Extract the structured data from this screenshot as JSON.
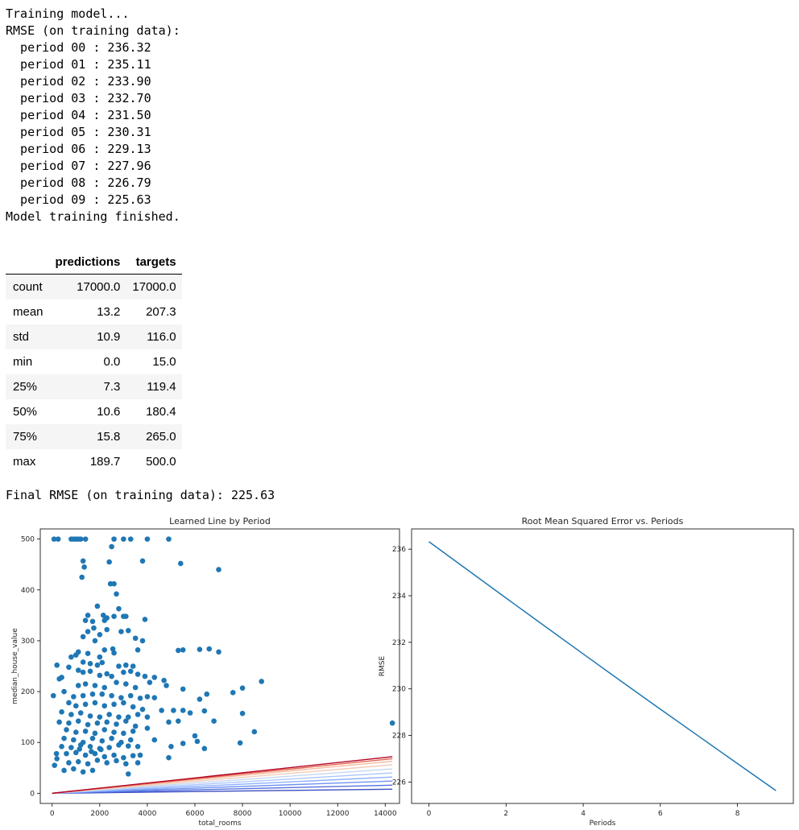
{
  "log": {
    "lines": [
      "Training model...",
      "RMSE (on training data):",
      "  period 00 : 236.32",
      "  period 01 : 235.11",
      "  period 02 : 233.90",
      "  period 03 : 232.70",
      "  period 04 : 231.50",
      "  period 05 : 230.31",
      "  period 06 : 229.13",
      "  period 07 : 227.96",
      "  period 08 : 226.79",
      "  period 09 : 225.63",
      "Model training finished."
    ]
  },
  "table": {
    "columns": [
      "",
      "predictions",
      "targets"
    ],
    "rows": [
      [
        "count",
        "17000.0",
        "17000.0"
      ],
      [
        "mean",
        "13.2",
        "207.3"
      ],
      [
        "std",
        "10.9",
        "116.0"
      ],
      [
        "min",
        "0.0",
        "15.0"
      ],
      [
        "25%",
        "7.3",
        "119.4"
      ],
      [
        "50%",
        "10.6",
        "180.4"
      ],
      [
        "75%",
        "15.8",
        "265.0"
      ],
      [
        "max",
        "189.7",
        "500.0"
      ]
    ]
  },
  "final_rmse": "Final RMSE (on training data): 225.63",
  "chart_data": [
    {
      "type": "scatter",
      "title": "Learned Line by Period",
      "xlabel": "total_rooms",
      "ylabel": "median_house_value",
      "xlim": [
        -500,
        14600
      ],
      "ylim": [
        -20,
        520
      ],
      "xticks": [
        0,
        2000,
        4000,
        6000,
        8000,
        10000,
        12000,
        14000
      ],
      "yticks": [
        0,
        100,
        200,
        300,
        400,
        500
      ],
      "point_color": "#1f77b4",
      "points": [
        [
          80,
          500
        ],
        [
          250,
          500
        ],
        [
          800,
          500
        ],
        [
          900,
          500
        ],
        [
          1000,
          500
        ],
        [
          1100,
          500
        ],
        [
          1200,
          500
        ],
        [
          1400,
          500
        ],
        [
          2600,
          500
        ],
        [
          3000,
          500
        ],
        [
          3300,
          500
        ],
        [
          4000,
          500
        ],
        [
          4900,
          500
        ],
        [
          1300,
          457
        ],
        [
          1350,
          445
        ],
        [
          1250,
          425
        ],
        [
          2400,
          455
        ],
        [
          2500,
          485
        ],
        [
          3800,
          457
        ],
        [
          5400,
          452
        ],
        [
          7000,
          440
        ],
        [
          2450,
          412
        ],
        [
          2600,
          412
        ],
        [
          2700,
          392
        ],
        [
          1900,
          368
        ],
        [
          2150,
          350
        ],
        [
          1500,
          350
        ],
        [
          1400,
          340
        ],
        [
          2200,
          340
        ],
        [
          1700,
          338
        ],
        [
          1750,
          325
        ],
        [
          2300,
          345
        ],
        [
          3000,
          348
        ],
        [
          3100,
          348
        ],
        [
          3900,
          342
        ],
        [
          2800,
          363
        ],
        [
          2600,
          348
        ],
        [
          1500,
          318
        ],
        [
          1300,
          308
        ],
        [
          2000,
          312
        ],
        [
          2300,
          322
        ],
        [
          2900,
          318
        ],
        [
          3200,
          320
        ],
        [
          3500,
          305
        ],
        [
          3800,
          300
        ],
        [
          1800,
          300
        ],
        [
          1000,
          272
        ],
        [
          1100,
          278
        ],
        [
          800,
          268
        ],
        [
          1500,
          275
        ],
        [
          2000,
          268
        ],
        [
          2200,
          282
        ],
        [
          2550,
          284
        ],
        [
          2600,
          276
        ],
        [
          3600,
          282
        ],
        [
          5300,
          281
        ],
        [
          5500,
          282
        ],
        [
          6200,
          283
        ],
        [
          6600,
          284
        ],
        [
          7000,
          278
        ],
        [
          1300,
          258
        ],
        [
          1600,
          255
        ],
        [
          1900,
          252
        ],
        [
          2100,
          257
        ],
        [
          2800,
          250
        ],
        [
          3100,
          252
        ],
        [
          3400,
          250
        ],
        [
          200,
          252
        ],
        [
          400,
          228
        ],
        [
          300,
          225
        ],
        [
          700,
          248
        ],
        [
          1100,
          242
        ],
        [
          1300,
          238
        ],
        [
          1600,
          240
        ],
        [
          2000,
          232
        ],
        [
          2300,
          235
        ],
        [
          2500,
          230
        ],
        [
          3000,
          238
        ],
        [
          3300,
          240
        ],
        [
          3600,
          234
        ],
        [
          3900,
          230
        ],
        [
          4300,
          228
        ],
        [
          1100,
          212
        ],
        [
          1400,
          215
        ],
        [
          1800,
          212
        ],
        [
          2200,
          208
        ],
        [
          2700,
          218
        ],
        [
          3100,
          215
        ],
        [
          3500,
          208
        ],
        [
          4100,
          218
        ],
        [
          4700,
          222
        ],
        [
          4800,
          212
        ],
        [
          8800,
          220
        ],
        [
          8000,
          207
        ],
        [
          7600,
          198
        ],
        [
          6500,
          195
        ],
        [
          5500,
          205
        ],
        [
          50,
          192
        ],
        [
          500,
          200
        ],
        [
          900,
          190
        ],
        [
          1300,
          192
        ],
        [
          1700,
          195
        ],
        [
          2100,
          195
        ],
        [
          2500,
          192
        ],
        [
          2900,
          188
        ],
        [
          3300,
          192
        ],
        [
          3700,
          187
        ],
        [
          4000,
          190
        ],
        [
          4300,
          188
        ],
        [
          700,
          178
        ],
        [
          1000,
          172
        ],
        [
          1400,
          175
        ],
        [
          1800,
          178
        ],
        [
          2200,
          172
        ],
        [
          2600,
          175
        ],
        [
          3000,
          178
        ],
        [
          3400,
          170
        ],
        [
          3800,
          165
        ],
        [
          6200,
          185
        ],
        [
          6400,
          162
        ],
        [
          4600,
          163
        ],
        [
          5100,
          163
        ],
        [
          5500,
          163
        ],
        [
          5800,
          158
        ],
        [
          8000,
          157
        ],
        [
          400,
          160
        ],
        [
          800,
          155
        ],
        [
          1200,
          158
        ],
        [
          1600,
          152
        ],
        [
          2000,
          150
        ],
        [
          2400,
          155
        ],
        [
          2800,
          150
        ],
        [
          3200,
          150
        ],
        [
          3600,
          155
        ],
        [
          4000,
          150
        ],
        [
          6800,
          142
        ],
        [
          300,
          140
        ],
        [
          700,
          138
        ],
        [
          1100,
          142
        ],
        [
          1500,
          135
        ],
        [
          1900,
          138
        ],
        [
          2300,
          140
        ],
        [
          2700,
          136
        ],
        [
          3100,
          142
        ],
        [
          3500,
          132
        ],
        [
          4000,
          128
        ],
        [
          4900,
          140
        ],
        [
          5300,
          142
        ],
        [
          14300,
          138
        ],
        [
          600,
          125
        ],
        [
          1000,
          120
        ],
        [
          1400,
          122
        ],
        [
          1800,
          118
        ],
        [
          2200,
          125
        ],
        [
          2600,
          120
        ],
        [
          3000,
          118
        ],
        [
          3400,
          122
        ],
        [
          8500,
          121
        ],
        [
          6000,
          113
        ],
        [
          500,
          108
        ],
        [
          900,
          105
        ],
        [
          1300,
          100
        ],
        [
          1700,
          108
        ],
        [
          2100,
          103
        ],
        [
          2500,
          108
        ],
        [
          2900,
          100
        ],
        [
          3300,
          105
        ],
        [
          4300,
          105
        ],
        [
          5500,
          98
        ],
        [
          6100,
          102
        ],
        [
          7900,
          99
        ],
        [
          400,
          92
        ],
        [
          800,
          90
        ],
        [
          1200,
          95
        ],
        [
          1600,
          92
        ],
        [
          2000,
          88
        ],
        [
          2400,
          90
        ],
        [
          2800,
          95
        ],
        [
          3200,
          93
        ],
        [
          3600,
          92
        ],
        [
          5000,
          92
        ],
        [
          6400,
          88
        ],
        [
          600,
          78
        ],
        [
          1000,
          80
        ],
        [
          1400,
          75
        ],
        [
          1800,
          78
        ],
        [
          2200,
          72
        ],
        [
          2600,
          75
        ],
        [
          3000,
          70
        ],
        [
          3400,
          74
        ],
        [
          3700,
          75
        ],
        [
          4900,
          70
        ],
        [
          200,
          68
        ],
        [
          700,
          60
        ],
        [
          1100,
          62
        ],
        [
          1500,
          58
        ],
        [
          1900,
          65
        ],
        [
          2300,
          60
        ],
        [
          2700,
          64
        ],
        [
          3100,
          58
        ],
        [
          3600,
          60
        ],
        [
          100,
          55
        ],
        [
          500,
          45
        ],
        [
          900,
          48
        ],
        [
          1300,
          42
        ],
        [
          1700,
          45
        ],
        [
          3200,
          38
        ],
        [
          180,
          78
        ],
        [
          1150,
          87
        ],
        [
          1650,
          82
        ],
        [
          2050,
          86
        ]
      ],
      "lines": [
        {
          "period": 0,
          "slope_end": 8,
          "color": "#3b4cc0"
        },
        {
          "period": 1,
          "slope_end": 16,
          "color": "#5470de"
        },
        {
          "period": 2,
          "slope_end": 24,
          "color": "#6f92f3"
        },
        {
          "period": 3,
          "slope_end": 32,
          "color": "#8db0fe"
        },
        {
          "period": 4,
          "slope_end": 40,
          "color": "#aac7fd"
        },
        {
          "period": 5,
          "slope_end": 48,
          "color": "#c6d6f1"
        },
        {
          "period": 6,
          "slope_end": 56,
          "color": "#f2cbb7"
        },
        {
          "period": 7,
          "slope_end": 63,
          "color": "#f7b89c"
        },
        {
          "period": 8,
          "slope_end": 68,
          "color": "#e0654f"
        },
        {
          "period": 9,
          "slope_end": 72,
          "color": "#b40426"
        }
      ],
      "line_x_range": [
        0,
        14300
      ]
    },
    {
      "type": "line",
      "title": "Root Mean Squared Error vs. Periods",
      "xlabel": "Periods",
      "ylabel": "RMSE",
      "xlim": [
        -0.45,
        9.45
      ],
      "ylim": [
        225.08,
        236.87
      ],
      "xticks": [
        0,
        2,
        4,
        6,
        8
      ],
      "yticks": [
        226,
        228,
        230,
        232,
        234,
        236
      ],
      "color": "#1f77b4",
      "x": [
        0,
        1,
        2,
        3,
        4,
        5,
        6,
        7,
        8,
        9
      ],
      "y": [
        236.32,
        235.11,
        233.9,
        232.7,
        231.5,
        230.31,
        229.13,
        227.96,
        226.79,
        225.63
      ]
    }
  ]
}
